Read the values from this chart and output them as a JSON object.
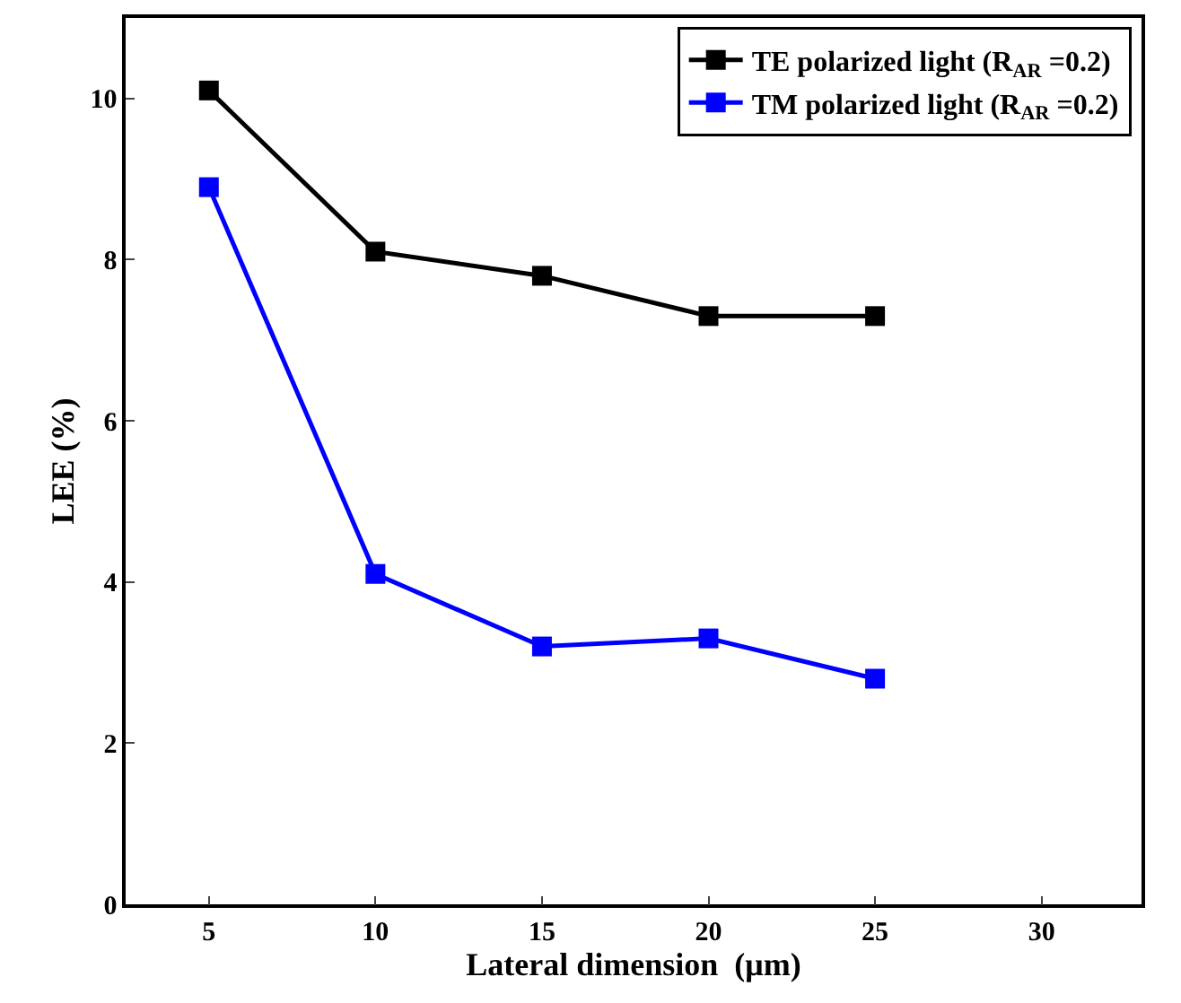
{
  "chart_data": {
    "type": "line",
    "xlabel": "Lateral dimension  (μm)",
    "ylabel": "LEE (%)",
    "x": [
      5,
      10,
      15,
      20,
      25
    ],
    "series": [
      {
        "name": "TE polarized light (R$_{AR}$ =0.2)",
        "color": "#000000",
        "values": [
          10.1,
          8.1,
          7.8,
          7.3,
          7.3
        ]
      },
      {
        "name": "TM polarized light (R$_{AR}$ =0.2)",
        "color": "#0000ff",
        "values": [
          8.9,
          4.1,
          3.2,
          3.3,
          2.8
        ]
      }
    ],
    "xlim": [
      2.5,
      33
    ],
    "xticks": [
      5,
      10,
      15,
      20,
      25,
      30
    ],
    "ylim": [
      0,
      11
    ],
    "yticks": [
      0,
      2,
      4,
      6,
      8,
      10
    ],
    "legend": "top right",
    "marker": "square",
    "line_style": "solid"
  }
}
